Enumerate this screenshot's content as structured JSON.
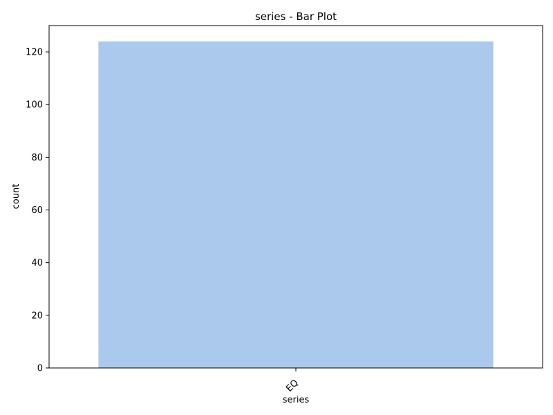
{
  "chart_data": {
    "type": "bar",
    "title": "series  - Bar Plot",
    "xlabel": "series",
    "ylabel": "count",
    "categories": [
      "EQ"
    ],
    "values": [
      124
    ],
    "ylim": [
      0,
      130
    ],
    "yticks": [
      0,
      20,
      40,
      60,
      80,
      100,
      120
    ],
    "xtick_rotation_deg": 45,
    "grid": false,
    "legend": "none",
    "bar_color": "#abc9ec",
    "axis_color": "#000000"
  }
}
